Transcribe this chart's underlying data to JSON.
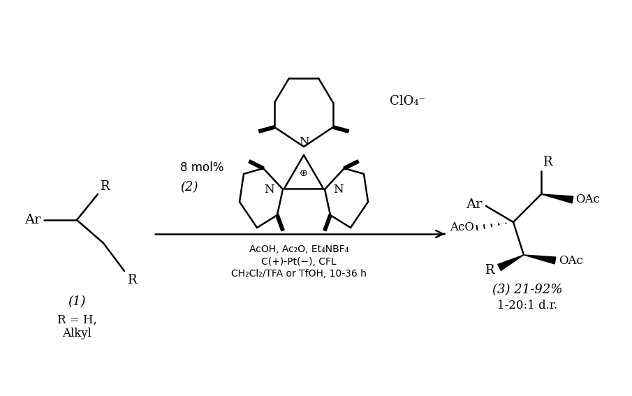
{
  "background_color": "#ffffff",
  "text_color": "#000000",
  "fig_width": 9.05,
  "fig_height": 5.67,
  "dpi": 100,
  "reagent_line1": "AcOH, Ac₂O, Et₄NBF₄",
  "reagent_line2": "C(+)-Pt(−), CFL",
  "reagent_line3": "CH₂Cl₂/TFA or TfOH, 10-36 h",
  "catalyst_label": "8 mol%",
  "compound2_label": "(2)",
  "compound1_label": "(1)",
  "compound1_sub1": "R = H,",
  "compound1_sub2": "Alkyl",
  "compound3_label": "(3) 21-92%",
  "compound3_sub": "1-20:1 d.r.",
  "cio4_label": "ClO₄⁻"
}
